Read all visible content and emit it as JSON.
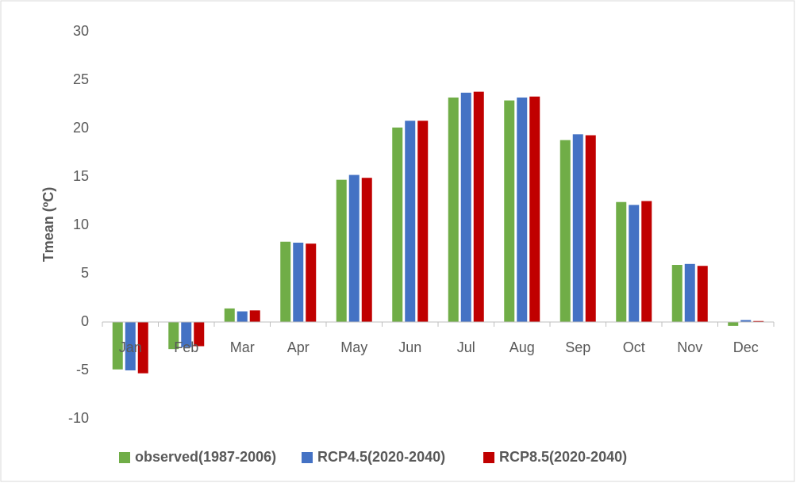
{
  "chart_data": {
    "type": "bar",
    "y_label": "Tmean (ºC)",
    "categories": [
      "Jan",
      "Feb",
      "Mar",
      "Apr",
      "May",
      "Jun",
      "Jul",
      "Aug",
      "Sep",
      "Oct",
      "Nov",
      "Dec"
    ],
    "series": [
      {
        "name": "observed(1987-2006)",
        "color": "#70ad47",
        "values": [
          -4.9,
          -2.8,
          1.4,
          8.3,
          14.7,
          20.1,
          23.2,
          22.9,
          18.8,
          12.4,
          5.9,
          -0.4
        ]
      },
      {
        "name": "RCP4.5(2020-2040)",
        "color": "#4472c4",
        "values": [
          -5.0,
          -2.6,
          1.1,
          8.2,
          15.2,
          20.8,
          23.7,
          23.2,
          19.4,
          12.1,
          6.0,
          0.2
        ]
      },
      {
        "name": "RCP8.5(2020-2040)",
        "color": "#c00000",
        "values": [
          -5.3,
          -2.5,
          1.2,
          8.1,
          14.9,
          20.8,
          23.8,
          23.3,
          19.3,
          12.5,
          5.8,
          0.1
        ]
      }
    ],
    "ylim": [
      -10,
      30
    ],
    "yticks": [
      -10,
      -5,
      0,
      5,
      10,
      15,
      20,
      25,
      30
    ],
    "grid": false,
    "legend": "bottom"
  }
}
